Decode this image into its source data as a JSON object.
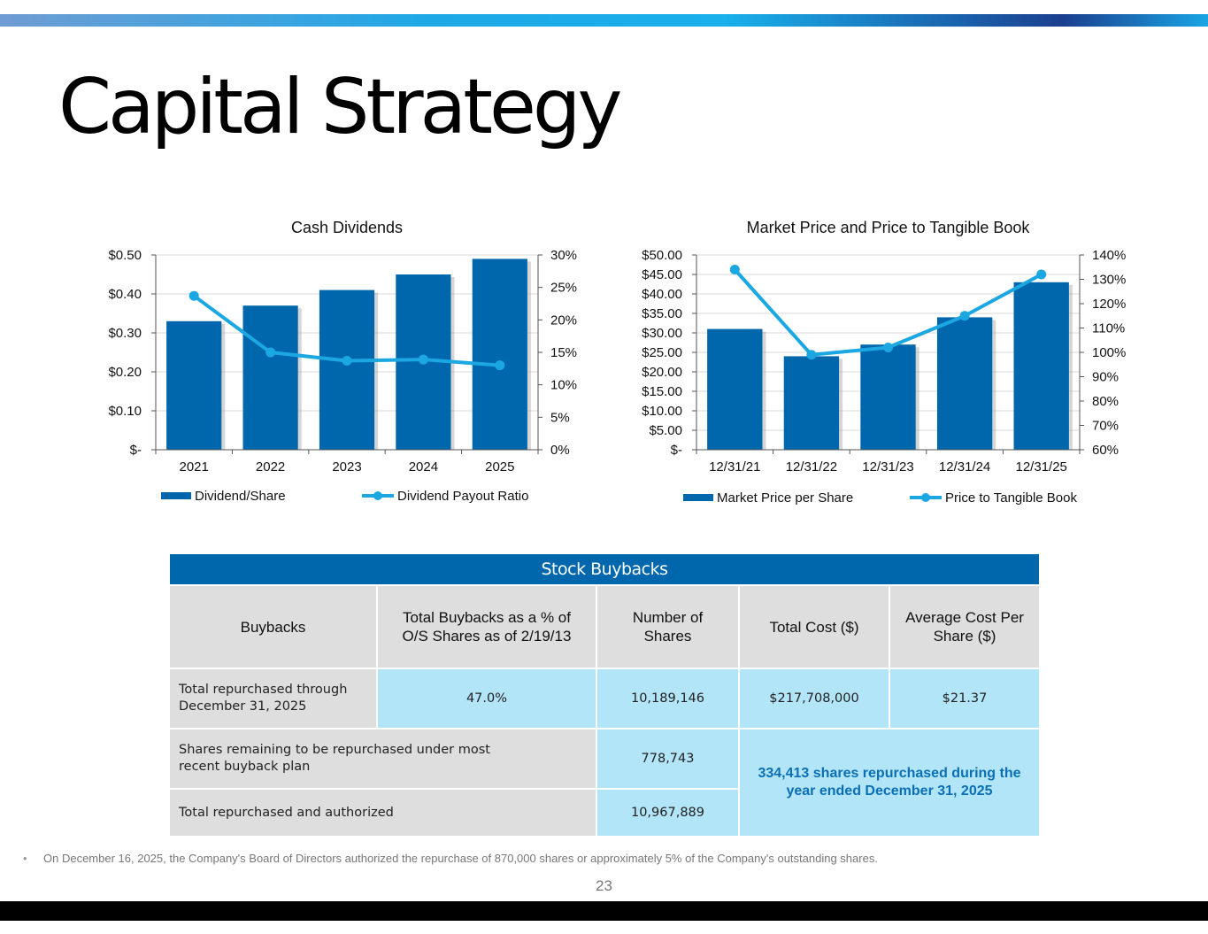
{
  "page": {
    "title": "Capital Strategy",
    "page_number": "23",
    "footnote": "On December 16, 2025, the Company's Board of Directors authorized the repurchase of 870,000 shares or approximately 5% of the Company's outstanding shares.",
    "footnote_bullet": "•"
  },
  "colors": {
    "bar": "#0067ac",
    "line": "#1aa7e2",
    "table_header": "#0067ac",
    "cell_gray": "#dedede",
    "cell_blue": "#b3e5f8"
  },
  "chart_data": [
    {
      "type": "bar",
      "title": "Cash Dividends",
      "categories": [
        "2021",
        "2022",
        "2023",
        "2024",
        "2025"
      ],
      "series": [
        {
          "name": "Dividend/Share",
          "type": "bar",
          "axis": "left",
          "values": [
            0.33,
            0.37,
            0.41,
            0.45,
            0.49
          ]
        },
        {
          "name": "Dividend Payout Ratio",
          "type": "line",
          "axis": "right",
          "values": [
            23.7,
            15.0,
            13.7,
            13.9,
            13.0
          ]
        }
      ],
      "y_left": {
        "min": 0,
        "max": 0.5,
        "ticks": [
          0,
          0.1,
          0.2,
          0.3,
          0.4,
          0.5
        ],
        "tick_labels": [
          "$-",
          "$0.10",
          "$0.20",
          "$0.30",
          "$0.40",
          "$0.50"
        ]
      },
      "y_right": {
        "min": 0,
        "max": 30,
        "ticks": [
          0,
          5,
          10,
          15,
          20,
          25,
          30
        ],
        "tick_labels": [
          "0%",
          "5%",
          "10%",
          "15%",
          "20%",
          "25%",
          "30%"
        ]
      },
      "legend": [
        "Dividend/Share",
        "Dividend Payout Ratio"
      ],
      "legend_position": "bottom",
      "grid": true
    },
    {
      "type": "bar",
      "title": "Market Price and Price to Tangible Book",
      "categories": [
        "12/31/21",
        "12/31/22",
        "12/31/23",
        "12/31/24",
        "12/31/25"
      ],
      "series": [
        {
          "name": "Market Price per Share",
          "type": "bar",
          "axis": "left",
          "values": [
            31.0,
            24.0,
            27.0,
            34.0,
            43.0
          ]
        },
        {
          "name": "Price to Tangible Book",
          "type": "line",
          "axis": "right",
          "values": [
            134,
            99,
            102,
            115,
            132
          ]
        }
      ],
      "y_left": {
        "min": 0,
        "max": 50,
        "ticks": [
          0,
          5,
          10,
          15,
          20,
          25,
          30,
          35,
          40,
          45,
          50
        ],
        "tick_labels": [
          "$-",
          "$5.00",
          "$10.00",
          "$15.00",
          "$20.00",
          "$25.00",
          "$30.00",
          "$35.00",
          "$40.00",
          "$45.00",
          "$50.00"
        ]
      },
      "y_right": {
        "min": 60,
        "max": 140,
        "ticks": [
          60,
          70,
          80,
          90,
          100,
          110,
          120,
          130,
          140
        ],
        "tick_labels": [
          "60%",
          "70%",
          "80%",
          "90%",
          "100%",
          "110%",
          "120%",
          "130%",
          "140%"
        ]
      },
      "legend": [
        "Market Price per Share",
        "Price to Tangible Book"
      ],
      "legend_position": "bottom",
      "grid": true
    }
  ],
  "buybacks_table": {
    "title": "Stock Buybacks",
    "headers": [
      "Buybacks",
      "Total Buybacks as a % of O/S Shares as of 2/19/13",
      "Number of Shares",
      "Total Cost ($)",
      "Average Cost Per Share ($)"
    ],
    "row1": {
      "label": "Total repurchased through December 31, 2025",
      "pct": "47.0%",
      "shares": "10,189,146",
      "cost": "$217,708,000",
      "avg": "$21.37"
    },
    "row2": {
      "label": "Shares remaining to be repurchased under most recent buyback plan",
      "shares": "778,743"
    },
    "row3": {
      "label": "Total repurchased and authorized",
      "shares": "10,967,889"
    },
    "note": "334,413 shares repurchased during the year ended December 31, 2025"
  }
}
